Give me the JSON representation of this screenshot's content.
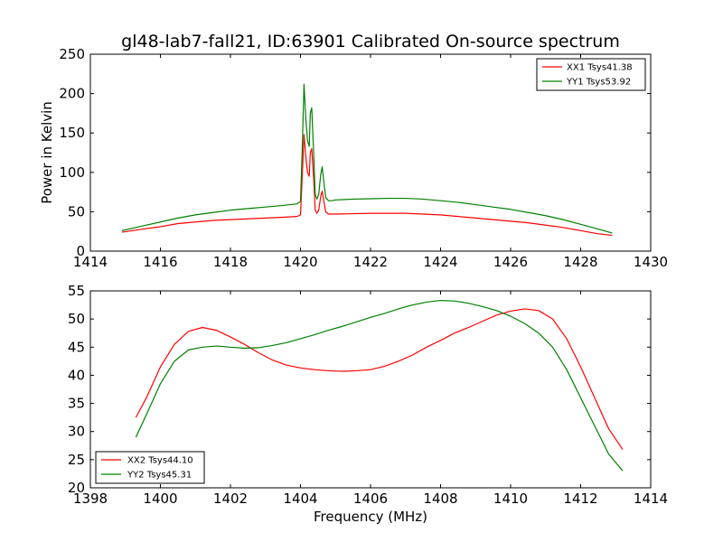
{
  "chart_data": [
    {
      "type": "line",
      "title": "gl48-lab7-fall21, ID:63901 Calibrated On-source spectrum",
      "xlabel": "",
      "ylabel": "Power in Kelvin",
      "xlim": [
        1414,
        1430
      ],
      "ylim": [
        0,
        250
      ],
      "xticks": [
        1414,
        1416,
        1418,
        1420,
        1422,
        1424,
        1426,
        1428,
        1430
      ],
      "yticks": [
        0,
        50,
        100,
        150,
        200,
        250
      ],
      "legend": "top-right",
      "grid": false,
      "series": [
        {
          "name": "XX1 Tsys41.38",
          "color": "#ff0000",
          "x": [
            1414.9,
            1415.5,
            1416.0,
            1416.5,
            1417.0,
            1417.5,
            1418.0,
            1418.5,
            1419.0,
            1419.5,
            1419.9,
            1420.0,
            1420.05,
            1420.1,
            1420.15,
            1420.2,
            1420.25,
            1420.28,
            1420.32,
            1420.38,
            1420.42,
            1420.47,
            1420.52,
            1420.58,
            1420.62,
            1420.66,
            1420.72,
            1420.8,
            1420.9,
            1421.0,
            1421.5,
            1422.0,
            1422.5,
            1423.0,
            1423.5,
            1424.0,
            1424.5,
            1425.0,
            1425.5,
            1426.0,
            1426.5,
            1427.0,
            1427.5,
            1428.0,
            1428.5,
            1428.9
          ],
          "y": [
            24,
            28,
            31,
            35,
            37,
            39,
            40,
            41,
            42,
            43,
            44,
            46,
            95,
            148,
            120,
            100,
            95,
            125,
            130,
            90,
            52,
            48,
            52,
            70,
            76,
            65,
            50,
            47,
            47,
            47,
            47.5,
            48,
            48,
            48,
            47,
            46,
            44,
            42,
            40,
            38,
            36,
            33,
            30,
            26,
            22,
            20
          ]
        },
        {
          "name": "YY1 Tsys53.92",
          "color": "#008000",
          "x": [
            1414.9,
            1415.5,
            1416.0,
            1416.5,
            1417.0,
            1417.5,
            1418.0,
            1418.5,
            1419.0,
            1419.5,
            1419.9,
            1420.0,
            1420.05,
            1420.1,
            1420.15,
            1420.2,
            1420.25,
            1420.28,
            1420.32,
            1420.38,
            1420.42,
            1420.47,
            1420.52,
            1420.58,
            1420.62,
            1420.66,
            1420.72,
            1420.8,
            1420.9,
            1421.0,
            1421.5,
            1422.0,
            1422.5,
            1423.0,
            1423.5,
            1424.0,
            1424.5,
            1425.0,
            1425.5,
            1426.0,
            1426.5,
            1427.0,
            1427.5,
            1428.0,
            1428.5,
            1428.9
          ],
          "y": [
            26,
            32,
            37,
            42,
            46,
            49,
            52,
            54,
            56,
            58,
            60,
            63,
            130,
            212,
            170,
            140,
            133,
            175,
            182,
            120,
            72,
            66,
            72,
            98,
            107,
            90,
            68,
            64,
            64,
            65,
            66,
            66.5,
            67,
            67,
            66,
            64,
            62,
            59,
            56,
            53,
            49,
            45,
            40,
            34,
            28,
            23
          ]
        }
      ]
    },
    {
      "type": "line",
      "title": "",
      "xlabel": "Frequency (MHz)",
      "ylabel": "",
      "xlim": [
        1398,
        1414
      ],
      "ylim": [
        20,
        55
      ],
      "xticks": [
        1398,
        1400,
        1402,
        1404,
        1406,
        1408,
        1410,
        1412,
        1414
      ],
      "yticks": [
        20,
        25,
        30,
        35,
        40,
        45,
        50,
        55
      ],
      "legend": "bottom-left",
      "grid": false,
      "series": [
        {
          "name": "XX2 Tsys44.10",
          "color": "#ff0000",
          "x": [
            1399.3,
            1399.6,
            1400.0,
            1400.4,
            1400.8,
            1401.2,
            1401.6,
            1402.0,
            1402.4,
            1402.8,
            1403.2,
            1403.6,
            1404.0,
            1404.4,
            1404.8,
            1405.2,
            1405.6,
            1406.0,
            1406.4,
            1406.8,
            1407.2,
            1407.6,
            1408.0,
            1408.4,
            1408.8,
            1409.2,
            1409.6,
            1410.0,
            1410.4,
            1410.8,
            1411.2,
            1411.6,
            1412.0,
            1412.4,
            1412.8,
            1413.2
          ],
          "y": [
            32.5,
            36.0,
            41.5,
            45.5,
            47.8,
            48.5,
            48.0,
            46.8,
            45.5,
            44.0,
            42.7,
            41.8,
            41.3,
            41.0,
            40.8,
            40.7,
            40.8,
            41.0,
            41.6,
            42.5,
            43.6,
            45.0,
            46.2,
            47.5,
            48.5,
            49.6,
            50.7,
            51.4,
            51.8,
            51.5,
            50.0,
            46.5,
            41.5,
            36.0,
            30.5,
            26.8
          ]
        },
        {
          "name": "YY2 Tsys45.31",
          "color": "#008000",
          "x": [
            1399.3,
            1399.6,
            1400.0,
            1400.4,
            1400.8,
            1401.2,
            1401.6,
            1402.0,
            1402.4,
            1402.8,
            1403.2,
            1403.6,
            1404.0,
            1404.4,
            1404.8,
            1405.2,
            1405.6,
            1406.0,
            1406.4,
            1406.8,
            1407.2,
            1407.6,
            1408.0,
            1408.4,
            1408.8,
            1409.2,
            1409.6,
            1410.0,
            1410.4,
            1410.8,
            1411.2,
            1411.6,
            1412.0,
            1412.4,
            1412.8,
            1413.2
          ],
          "y": [
            29.0,
            33.0,
            38.5,
            42.5,
            44.5,
            45.0,
            45.2,
            45.0,
            44.8,
            44.9,
            45.3,
            45.8,
            46.5,
            47.2,
            48.0,
            48.7,
            49.5,
            50.3,
            51.0,
            51.8,
            52.5,
            53.0,
            53.3,
            53.2,
            52.8,
            52.2,
            51.5,
            50.5,
            49.2,
            47.5,
            45.0,
            41.0,
            36.0,
            31.0,
            26.0,
            23.0
          ]
        }
      ]
    }
  ]
}
